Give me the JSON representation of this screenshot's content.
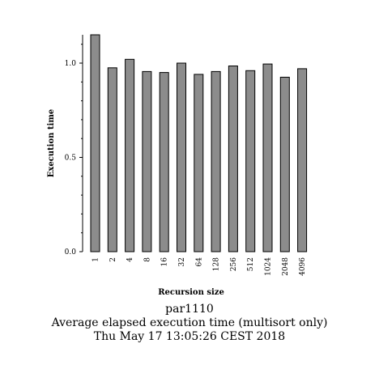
{
  "chart_data": {
    "type": "bar",
    "categories": [
      "1",
      "2",
      "4",
      "8",
      "16",
      "32",
      "64",
      "128",
      "256",
      "512",
      "1024",
      "2048",
      "4096"
    ],
    "values": [
      1.15,
      0.975,
      1.02,
      0.955,
      0.95,
      1.0,
      0.94,
      0.955,
      0.985,
      0.96,
      0.995,
      0.925,
      0.97
    ],
    "xlabel": "Recursion size",
    "ylabel": "Execution time",
    "ylim": [
      0,
      1.15
    ],
    "yticks": [
      "0.0",
      "0.5",
      "1.0"
    ],
    "grid": false,
    "bar_color": "#8c8c8c",
    "edge_color": "#000000"
  },
  "captions": {
    "line1": "par1110",
    "line2": "Average elapsed execution time (multisort only)",
    "line3": "Thu May 17 13:05:26 CEST 2018"
  }
}
